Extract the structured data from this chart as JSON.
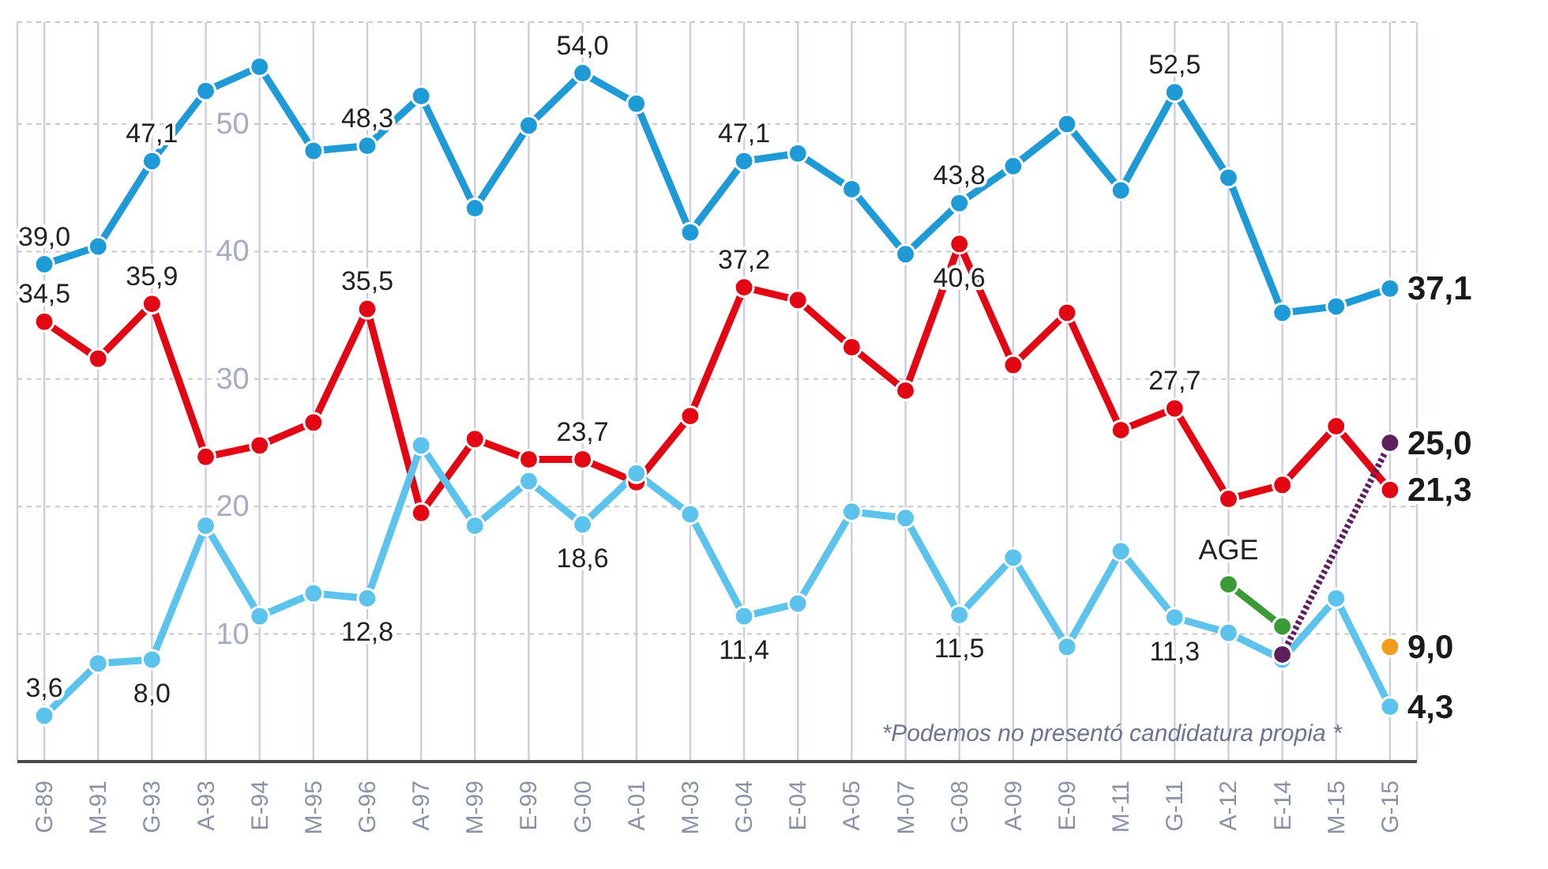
{
  "chart_data": {
    "type": "line",
    "categories": [
      "G-89",
      "M-91",
      "G-93",
      "A-93",
      "E-94",
      "M-95",
      "G-96",
      "A-97",
      "M-99",
      "E-99",
      "G-00",
      "A-01",
      "M-03",
      "G-04",
      "E-04",
      "A-05",
      "M-07",
      "G-08",
      "A-09",
      "E-09",
      "M-11",
      "G-11",
      "A-12",
      "E-14",
      "M-15",
      "G-15"
    ],
    "ylim": [
      0,
      58
    ],
    "yticks": [
      10,
      20,
      30,
      40,
      50
    ],
    "grid": true,
    "marker": "circle",
    "line_style": "solid",
    "annotations": [
      "*Podemos no presentó candidatura propia *"
    ],
    "series": [
      {
        "color": "#1e9ad6",
        "values": [
          39.0,
          40.4,
          47.1,
          52.6,
          54.5,
          47.9,
          48.3,
          52.2,
          43.4,
          49.9,
          54.0,
          51.6,
          41.5,
          47.1,
          47.7,
          44.9,
          39.8,
          43.8,
          46.7,
          50.0,
          44.8,
          52.5,
          45.8,
          35.2,
          35.7,
          37.1
        ],
        "value_labels": [
          "39,0",
          null,
          "47,1",
          null,
          null,
          null,
          "48,3",
          null,
          null,
          null,
          "54,0",
          null,
          null,
          "47,1",
          null,
          null,
          null,
          "43,8",
          null,
          null,
          null,
          "52,5",
          null,
          null,
          null,
          "37,1"
        ]
      },
      {
        "color": "#e30613",
        "values": [
          34.5,
          31.6,
          35.9,
          23.9,
          24.8,
          26.6,
          35.5,
          19.5,
          25.3,
          23.7,
          23.7,
          21.9,
          27.1,
          37.2,
          36.2,
          32.5,
          29.1,
          40.6,
          31.1,
          35.2,
          26.0,
          27.7,
          20.6,
          21.7,
          26.3,
          21.3
        ],
        "value_labels": [
          "34,5",
          null,
          "35,9",
          null,
          null,
          null,
          "35,5",
          null,
          null,
          null,
          "23,7",
          null,
          null,
          "37,2",
          null,
          null,
          null,
          "40,6",
          null,
          null,
          null,
          "27,7",
          null,
          null,
          null,
          "21,3"
        ]
      },
      {
        "color": "#5bc3ec",
        "values": [
          3.6,
          7.7,
          8.0,
          18.5,
          11.4,
          13.2,
          12.8,
          24.8,
          18.5,
          22.0,
          18.6,
          22.6,
          19.4,
          11.4,
          12.4,
          19.6,
          19.1,
          11.5,
          16.0,
          9.0,
          16.5,
          11.3,
          10.1,
          8.0,
          12.8,
          4.3
        ],
        "value_labels": [
          "3,6",
          null,
          "8,0",
          null,
          null,
          null,
          "12,8",
          null,
          null,
          null,
          "18,6",
          null,
          null,
          "11,4",
          null,
          null,
          null,
          "11,5",
          null,
          null,
          null,
          "11,3",
          null,
          null,
          null,
          "4,3"
        ]
      },
      {
        "name": "AGE",
        "color": "#3a9a35",
        "values": [
          null,
          null,
          null,
          null,
          null,
          null,
          null,
          null,
          null,
          null,
          null,
          null,
          null,
          null,
          null,
          null,
          null,
          null,
          null,
          null,
          null,
          null,
          13.9,
          10.6,
          null,
          null
        ]
      },
      {
        "color": "#5e1f5c",
        "line_style": "dotted",
        "values": [
          null,
          null,
          null,
          null,
          null,
          null,
          null,
          null,
          null,
          null,
          null,
          null,
          null,
          null,
          null,
          null,
          null,
          null,
          null,
          null,
          null,
          null,
          null,
          8.4,
          null,
          25.0
        ],
        "value_labels": [
          null,
          null,
          null,
          null,
          null,
          null,
          null,
          null,
          null,
          null,
          null,
          null,
          null,
          null,
          null,
          null,
          null,
          null,
          null,
          null,
          null,
          null,
          null,
          null,
          null,
          "25,0"
        ]
      },
      {
        "type": "scatter",
        "color": "#f39c1b",
        "values": [
          null,
          null,
          null,
          null,
          null,
          null,
          null,
          null,
          null,
          null,
          null,
          null,
          null,
          null,
          null,
          null,
          null,
          null,
          null,
          null,
          null,
          null,
          null,
          null,
          null,
          9.0
        ],
        "value_labels": [
          null,
          null,
          null,
          null,
          null,
          null,
          null,
          null,
          null,
          null,
          null,
          null,
          null,
          null,
          null,
          null,
          null,
          null,
          null,
          null,
          null,
          null,
          null,
          null,
          null,
          "9,0"
        ]
      }
    ]
  }
}
